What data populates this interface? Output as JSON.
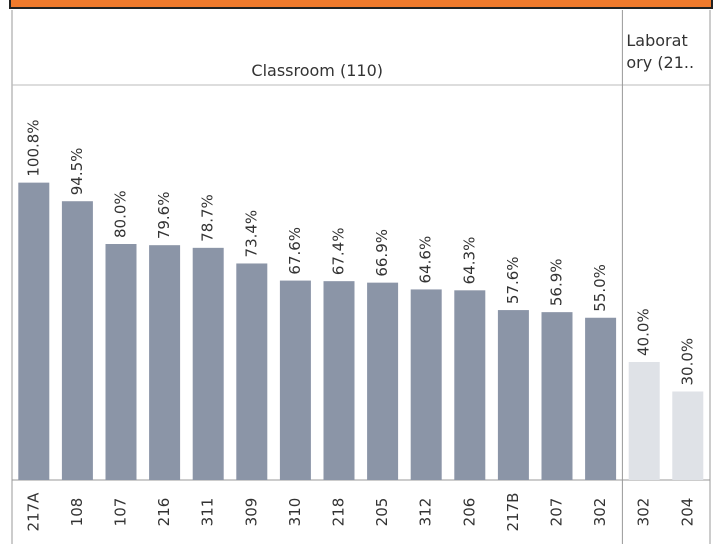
{
  "chart_data": {
    "type": "bar",
    "groups": [
      {
        "name": "Classroom (110)",
        "color": "#8b95a7",
        "categories": [
          "217A",
          "108",
          "107",
          "216",
          "311",
          "309",
          "310",
          "218",
          "205",
          "312",
          "206",
          "217B",
          "207",
          "302"
        ],
        "values": [
          100.8,
          94.5,
          80.0,
          79.6,
          78.7,
          73.4,
          67.6,
          67.4,
          66.9,
          64.6,
          64.3,
          57.6,
          56.9,
          55.0
        ],
        "value_labels": [
          "100.8%",
          "94.5%",
          "80.0%",
          "79.6%",
          "78.7%",
          "73.4%",
          "67.6%",
          "67.4%",
          "66.9%",
          "64.6%",
          "64.3%",
          "57.6%",
          "56.9%",
          "55.0%"
        ]
      },
      {
        "name": "Laboratory (21..",
        "color": "#dfe2e7",
        "categories": [
          "302",
          "204"
        ],
        "values": [
          40.0,
          30.0
        ],
        "value_labels": [
          "40.0%",
          "30.0%"
        ]
      }
    ]
  }
}
